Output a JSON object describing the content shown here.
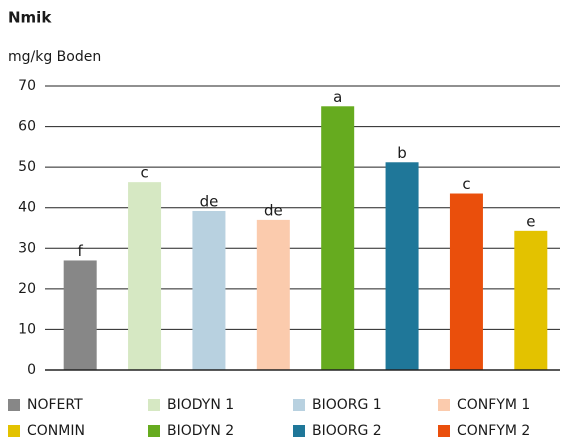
{
  "chart_data": {
    "type": "bar",
    "title": "Nmik",
    "y_label": "mg/kg Boden",
    "ylim": [
      0,
      70
    ],
    "yticks": [
      0,
      10,
      20,
      30,
      40,
      50,
      60,
      70
    ],
    "grid": true,
    "series": [
      {
        "name": "NOFERT",
        "color": "#878787",
        "values": [
          27
        ],
        "label": "f"
      },
      {
        "name": "BIODYN 1",
        "color": "#d6e8c3",
        "values": [
          46.3
        ],
        "label": "c"
      },
      {
        "name": "BIOORG 1",
        "color": "#b8d1e0",
        "values": [
          39.2
        ],
        "label": "de"
      },
      {
        "name": "CONFYM 1",
        "color": "#fbcbad",
        "values": [
          37
        ],
        "label": "de"
      },
      {
        "name": "BIODYN 2",
        "color": "#66ab1f",
        "values": [
          65
        ],
        "label": "a"
      },
      {
        "name": "BIOORG 2",
        "color": "#1f7799",
        "values": [
          51.2
        ],
        "label": "b"
      },
      {
        "name": "CONFYM 2",
        "color": "#ea4f0c",
        "values": [
          43.5
        ],
        "label": "c"
      },
      {
        "name": "CONMIN",
        "color": "#e3c200",
        "values": [
          34.3
        ],
        "label": "e"
      }
    ]
  }
}
